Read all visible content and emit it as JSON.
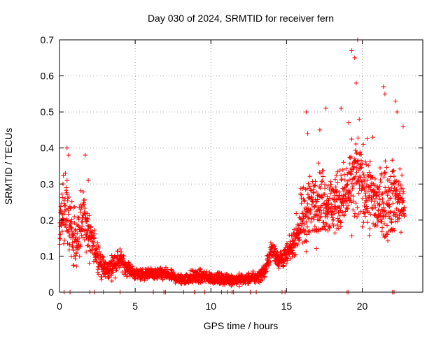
{
  "chart_data": {
    "type": "scatter",
    "title": "Day 030 of 2024, SRMTID for receiver fern",
    "xlabel": "GPS time / hours",
    "ylabel": "SRMTID / TECUs",
    "xlim": [
      0,
      24
    ],
    "ylim": [
      0,
      0.7
    ],
    "x_ticks": [
      0,
      5,
      10,
      15,
      20
    ],
    "y_ticks": [
      0,
      0.1,
      0.2,
      0.3,
      0.4,
      0.5,
      0.6,
      0.7
    ],
    "x_tick_labels": [
      "0",
      "5",
      "10",
      "15",
      "20"
    ],
    "y_tick_labels": [
      "0",
      "0.1",
      "0.2",
      "0.3",
      "0.4",
      "0.5",
      "0.6",
      "0.7"
    ],
    "grid": true,
    "marker": "plus",
    "series": [
      {
        "name": "SRMTID",
        "color": "#ff0000",
        "envelope": [
          [
            0.0,
            0.17,
            0.07
          ],
          [
            0.4,
            0.25,
            0.12
          ],
          [
            0.8,
            0.15,
            0.08
          ],
          [
            1.2,
            0.14,
            0.07
          ],
          [
            1.6,
            0.22,
            0.1
          ],
          [
            2.0,
            0.14,
            0.06
          ],
          [
            2.4,
            0.12,
            0.05
          ],
          [
            2.8,
            0.07,
            0.03
          ],
          [
            3.2,
            0.06,
            0.025
          ],
          [
            3.6,
            0.08,
            0.03
          ],
          [
            4.0,
            0.09,
            0.025
          ],
          [
            4.4,
            0.07,
            0.02
          ],
          [
            5.0,
            0.05,
            0.015
          ],
          [
            6.0,
            0.05,
            0.015
          ],
          [
            7.0,
            0.05,
            0.015
          ],
          [
            8.0,
            0.035,
            0.015
          ],
          [
            9.0,
            0.045,
            0.018
          ],
          [
            10.0,
            0.04,
            0.015
          ],
          [
            11.0,
            0.035,
            0.015
          ],
          [
            12.0,
            0.035,
            0.015
          ],
          [
            13.0,
            0.04,
            0.015
          ],
          [
            13.6,
            0.06,
            0.02
          ],
          [
            14.0,
            0.12,
            0.025
          ],
          [
            14.5,
            0.09,
            0.025
          ],
          [
            15.0,
            0.1,
            0.03
          ],
          [
            15.5,
            0.14,
            0.03
          ],
          [
            16.0,
            0.2,
            0.08
          ],
          [
            17.0,
            0.26,
            0.09
          ],
          [
            18.0,
            0.24,
            0.08
          ],
          [
            19.0,
            0.27,
            0.09
          ],
          [
            19.6,
            0.32,
            0.12
          ],
          [
            20.0,
            0.3,
            0.1
          ],
          [
            21.0,
            0.24,
            0.09
          ],
          [
            22.0,
            0.26,
            0.1
          ],
          [
            22.8,
            0.25,
            0.08
          ]
        ],
        "peaks": [
          [
            0.5,
            0.4
          ],
          [
            0.6,
            0.38
          ],
          [
            1.7,
            0.38
          ],
          [
            1.9,
            0.31
          ],
          [
            4.0,
            0.12
          ],
          [
            16.3,
            0.5
          ],
          [
            16.4,
            0.44
          ],
          [
            17.2,
            0.45
          ],
          [
            17.6,
            0.51
          ],
          [
            18.6,
            0.51
          ],
          [
            19.1,
            0.47
          ],
          [
            19.3,
            0.67
          ],
          [
            19.5,
            0.65
          ],
          [
            19.7,
            0.7
          ],
          [
            19.6,
            0.58
          ],
          [
            19.8,
            0.48
          ],
          [
            20.7,
            0.43
          ],
          [
            21.4,
            0.57
          ],
          [
            21.5,
            0.55
          ],
          [
            22.2,
            0.53
          ],
          [
            22.3,
            0.5
          ],
          [
            22.7,
            0.46
          ]
        ],
        "gaps": [
          0.3,
          0.7,
          2.0,
          2.3,
          2.9,
          4.0,
          6.2,
          6.9,
          7.0,
          8.2,
          8.9,
          9.6,
          10.7,
          11.1,
          11.4,
          11.5,
          12.6,
          13.0,
          14.7,
          14.9,
          19.0,
          19.1,
          22.0,
          22.1
        ]
      }
    ]
  }
}
